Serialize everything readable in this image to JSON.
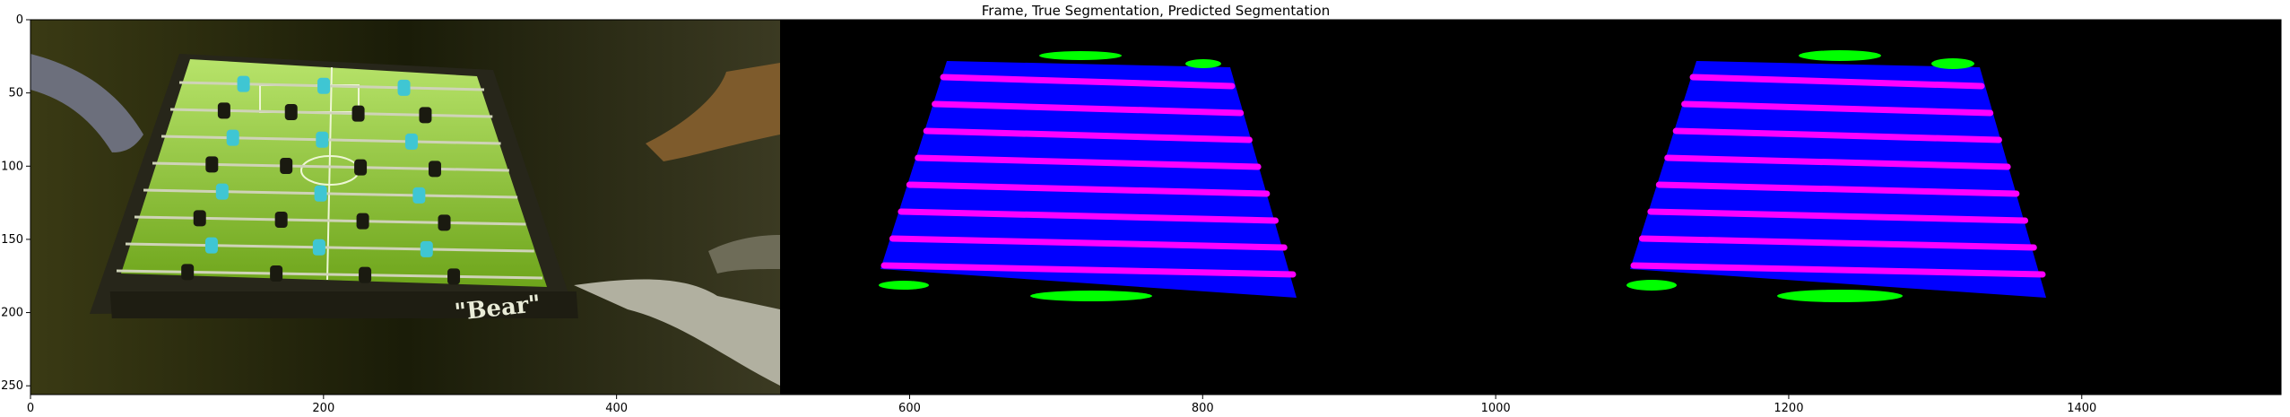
{
  "chart_data": {
    "type": "image",
    "title": "Frame, True Segmentation, Predicted Segmentation",
    "xlim": [
      0,
      1536
    ],
    "ylim": [
      256,
      0
    ],
    "xticks": [
      0,
      200,
      400,
      600,
      800,
      1000,
      1200,
      1400
    ],
    "yticks": [
      0,
      50,
      100,
      150,
      200,
      250
    ],
    "panels": [
      {
        "name": "frame",
        "x_range": [
          0,
          512
        ]
      },
      {
        "name": "true-segmentation",
        "x_range": [
          512,
          1024
        ]
      },
      {
        "name": "predicted-segmentation",
        "x_range": [
          1024,
          1536
        ]
      }
    ],
    "frame_text": "\"Bear\"",
    "colors": {
      "field": "#0000ff",
      "rods": "#ff00ff",
      "players": "#00ff00",
      "background": "#000000",
      "photo_table": "#79b81a"
    }
  }
}
